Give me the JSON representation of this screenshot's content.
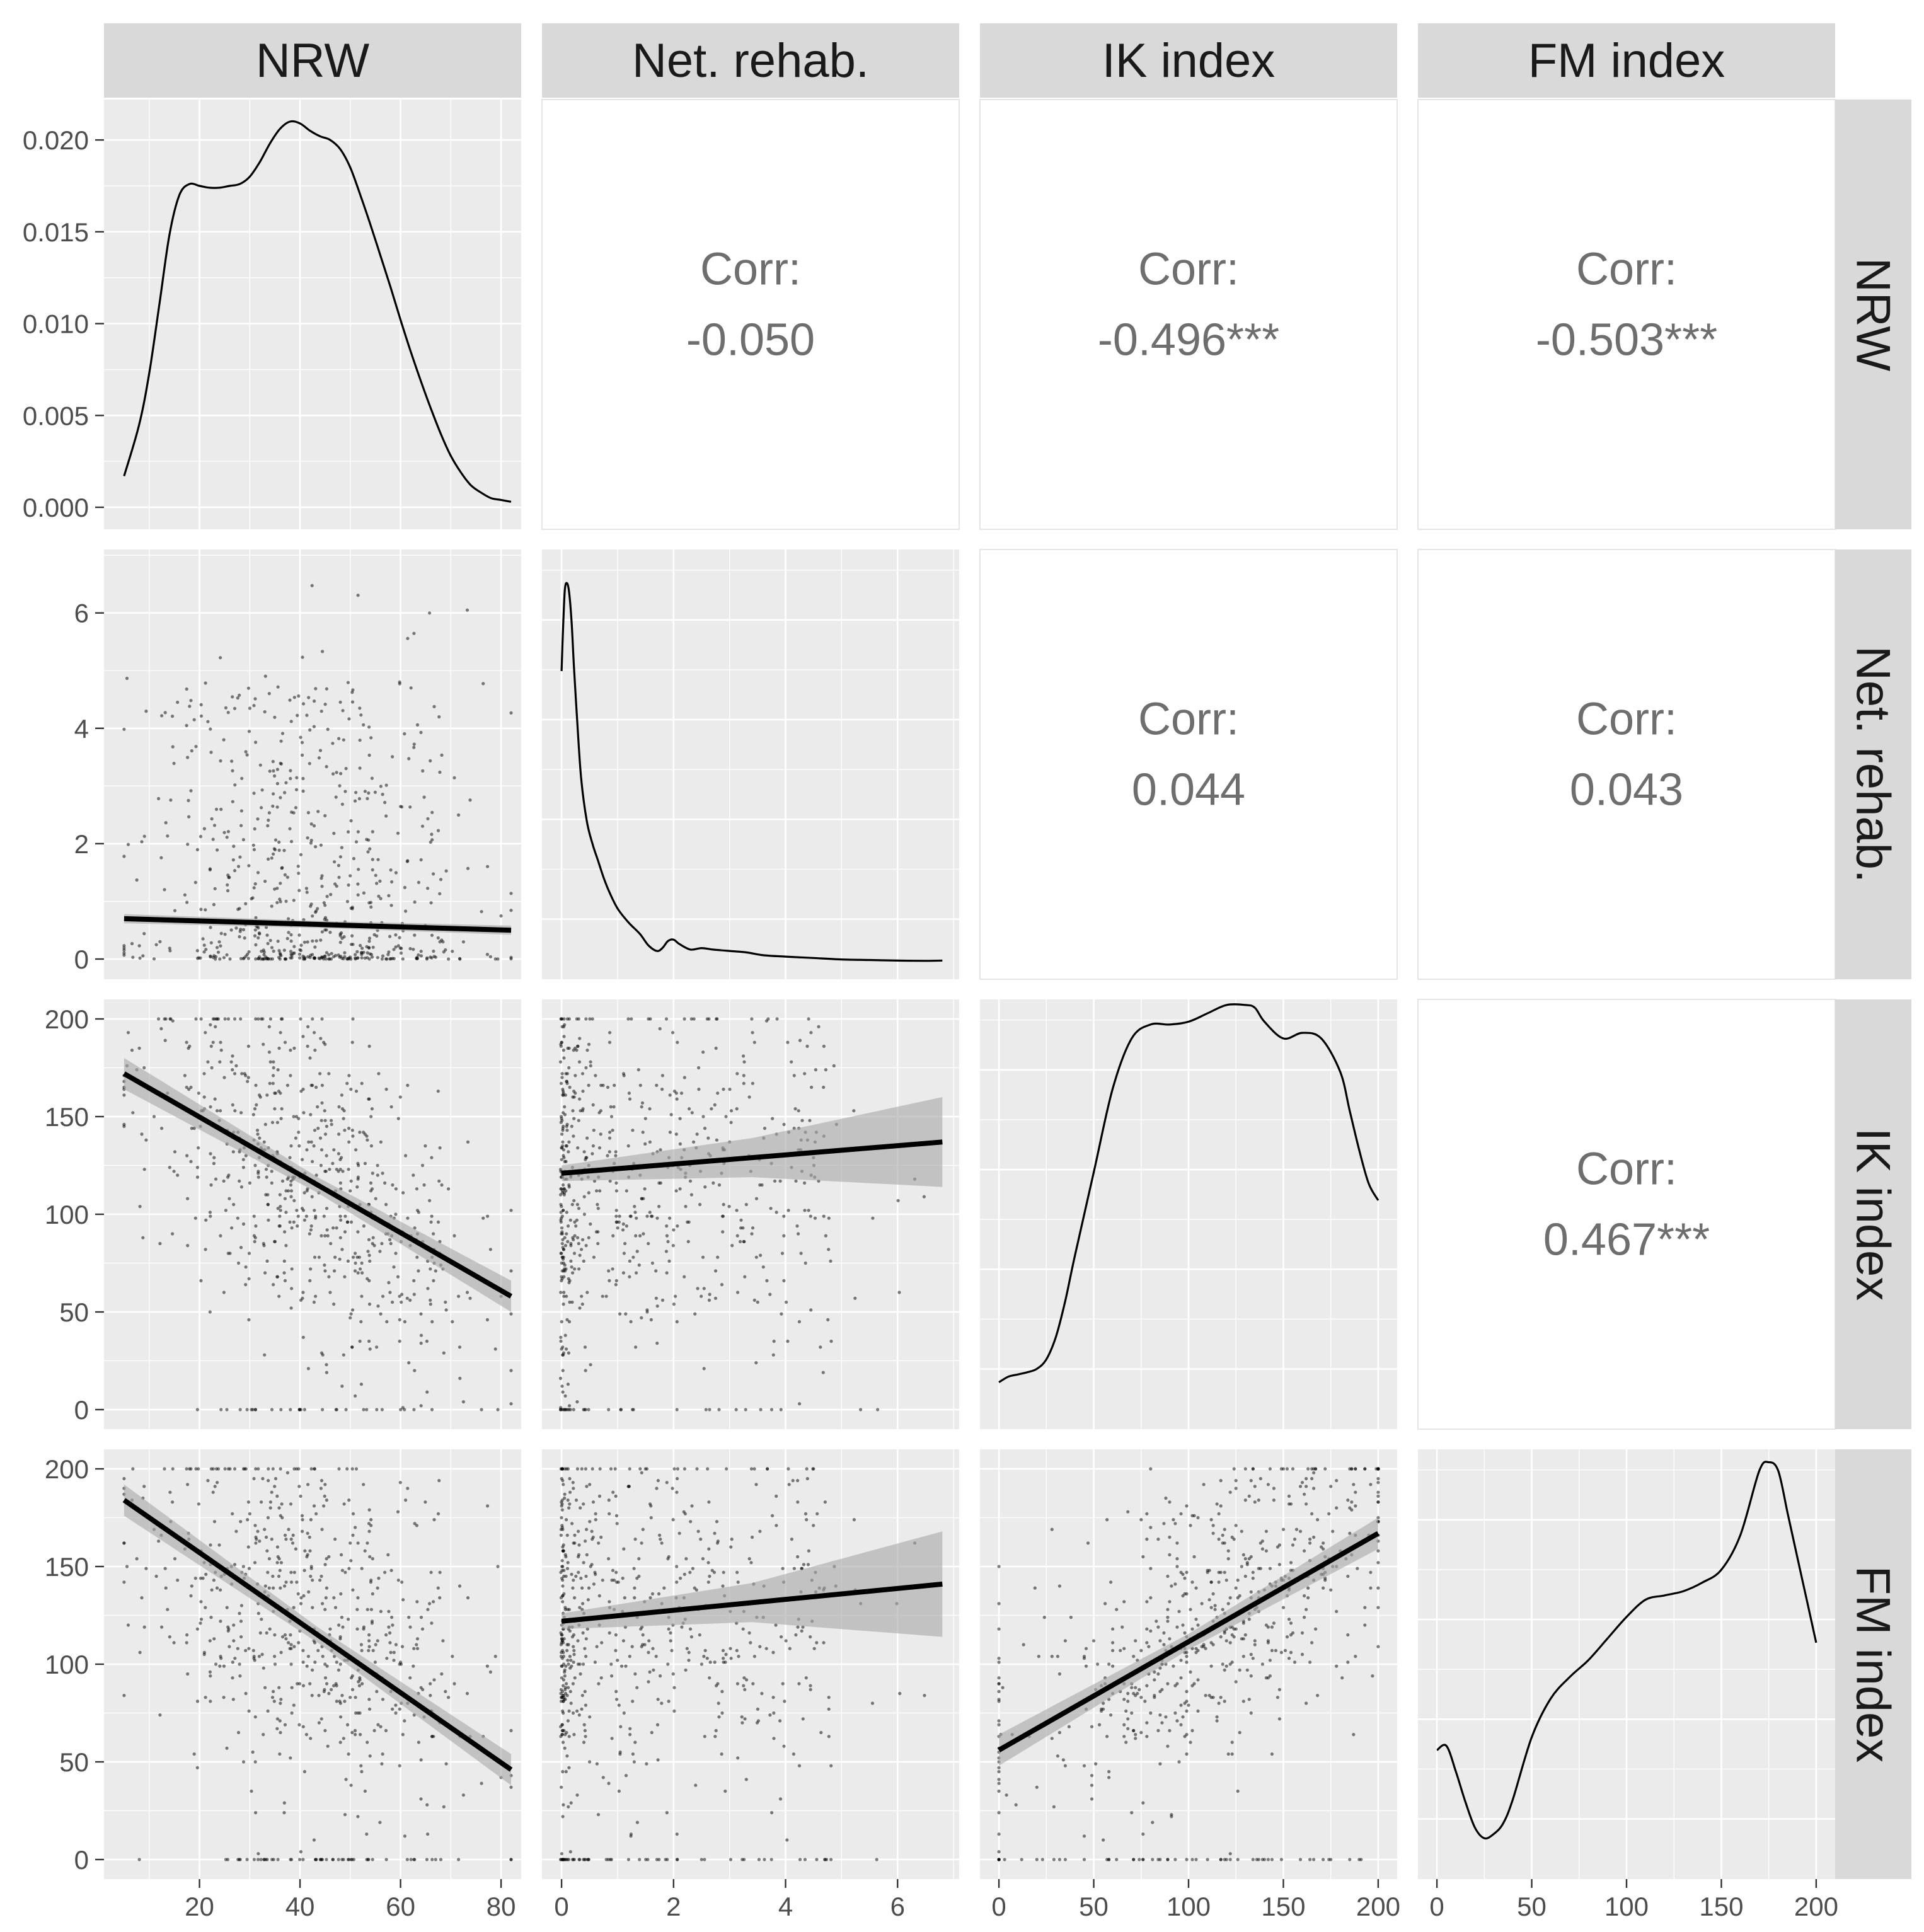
{
  "chart_data": {
    "type": "scatter",
    "title": "",
    "variables": [
      "NRW",
      "Net. rehab.",
      "IK index",
      "FM index"
    ],
    "diagonal": [
      {
        "variable": "NRW",
        "type": "density",
        "xlim": [
          1,
          84
        ],
        "ylim": [
          -0.0012,
          0.0222
        ],
        "y_ticks": [
          0.0,
          0.005,
          0.01,
          0.015,
          0.02
        ],
        "y_tick_labels": [
          "0.000",
          "0.005",
          "0.010",
          "0.015",
          "0.020"
        ],
        "x": [
          5,
          8,
          10,
          12,
          14,
          16,
          18,
          20,
          22,
          24,
          26,
          28,
          30,
          32,
          34,
          36,
          38,
          40,
          42,
          44,
          46,
          48,
          50,
          52,
          54,
          56,
          58,
          60,
          62,
          64,
          66,
          68,
          70,
          72,
          74,
          76,
          78,
          80,
          82
        ],
        "y": [
          0.0017,
          0.0045,
          0.0073,
          0.011,
          0.0148,
          0.017,
          0.0176,
          0.0175,
          0.0174,
          0.0174,
          0.0175,
          0.0176,
          0.018,
          0.0188,
          0.0198,
          0.0206,
          0.021,
          0.0209,
          0.0205,
          0.0202,
          0.02,
          0.0195,
          0.0185,
          0.017,
          0.0154,
          0.0137,
          0.012,
          0.0102,
          0.0085,
          0.0069,
          0.0054,
          0.004,
          0.0028,
          0.0019,
          0.0012,
          0.0008,
          0.0005,
          0.0004,
          0.0003
        ]
      },
      {
        "variable": "Net. rehab.",
        "type": "density",
        "xlim": [
          -0.35,
          7.1
        ],
        "ylim": [
          -0.06,
          1.46
        ],
        "x": [
          0,
          0.03,
          0.06,
          0.1,
          0.14,
          0.18,
          0.22,
          0.28,
          0.35,
          0.45,
          0.55,
          0.65,
          0.75,
          0.85,
          1.0,
          1.2,
          1.4,
          1.55,
          1.7,
          1.8,
          1.9,
          2.0,
          2.1,
          2.3,
          2.5,
          2.7,
          3.0,
          3.3,
          3.6,
          4.0,
          4.5,
          5.0,
          5.5,
          6.0,
          6.5,
          6.8
        ],
        "y": [
          1.03,
          1.2,
          1.32,
          1.34,
          1.3,
          1.2,
          1.05,
          0.85,
          0.65,
          0.5,
          0.42,
          0.36,
          0.3,
          0.25,
          0.19,
          0.14,
          0.1,
          0.06,
          0.04,
          0.05,
          0.075,
          0.08,
          0.065,
          0.045,
          0.05,
          0.045,
          0.04,
          0.035,
          0.025,
          0.02,
          0.015,
          0.01,
          0.008,
          0.006,
          0.005,
          0.006
        ]
      },
      {
        "variable": "IK index",
        "type": "density",
        "xlim": [
          -10,
          210
        ],
        "ylim": [
          -0.0002,
          0.0075
        ],
        "x": [
          0,
          5,
          10,
          15,
          20,
          25,
          30,
          35,
          40,
          50,
          60,
          70,
          80,
          90,
          100,
          110,
          120,
          130,
          135,
          140,
          150,
          160,
          170,
          180,
          185,
          190,
          195,
          200
        ],
        "y": [
          0.00064,
          0.00074,
          0.00078,
          0.00082,
          0.00088,
          0.00105,
          0.00145,
          0.0021,
          0.0029,
          0.0044,
          0.0059,
          0.0068,
          0.00705,
          0.00705,
          0.0071,
          0.00725,
          0.0074,
          0.0074,
          0.00735,
          0.0071,
          0.0068,
          0.0069,
          0.0068,
          0.0062,
          0.0055,
          0.0048,
          0.0042,
          0.0039
        ]
      },
      {
        "variable": "FM index",
        "type": "density",
        "xlim": [
          -10,
          210
        ],
        "ylim": [
          0,
          0.01
        ],
        "x": [
          0,
          5,
          10,
          15,
          20,
          25,
          30,
          35,
          40,
          50,
          60,
          70,
          80,
          90,
          100,
          110,
          120,
          130,
          140,
          150,
          160,
          170,
          175,
          180,
          185,
          190,
          195,
          200
        ],
        "y": [
          0.003,
          0.0031,
          0.0025,
          0.0018,
          0.0012,
          0.00095,
          0.00105,
          0.0013,
          0.00185,
          0.0033,
          0.0042,
          0.0047,
          0.0051,
          0.0056,
          0.0061,
          0.0065,
          0.0066,
          0.0067,
          0.0069,
          0.0072,
          0.008,
          0.0095,
          0.0097,
          0.0095,
          0.0085,
          0.0075,
          0.0065,
          0.0055
        ]
      }
    ],
    "correlations": [
      {
        "row": 0,
        "col": 1,
        "label": "Corr:",
        "value": "-0.050"
      },
      {
        "row": 0,
        "col": 2,
        "label": "Corr:",
        "value": "-0.496***"
      },
      {
        "row": 0,
        "col": 3,
        "label": "Corr:",
        "value": "-0.503***"
      },
      {
        "row": 1,
        "col": 2,
        "label": "Corr:",
        "value": "0.044"
      },
      {
        "row": 1,
        "col": 3,
        "label": "Corr:",
        "value": "0.043"
      },
      {
        "row": 2,
        "col": 3,
        "label": "Corr:",
        "value": "0.467***"
      }
    ],
    "scatter_panels": [
      {
        "row": 1,
        "col": 0,
        "x_var": "NRW",
        "y_var": "Net. rehab.",
        "fit": {
          "x0": 5,
          "y0": 0.7,
          "x1": 82,
          "y1": 0.5
        },
        "ci_half_width": [
          0.08,
          0.06,
          0.08
        ]
      },
      {
        "row": 2,
        "col": 0,
        "x_var": "NRW",
        "y_var": "IK index",
        "fit": {
          "x0": 5,
          "y0": 172,
          "x1": 82,
          "y1": 58
        },
        "ci_half_width": [
          8,
          4,
          8
        ]
      },
      {
        "row": 2,
        "col": 1,
        "x_var": "Net. rehab.",
        "y_var": "IK index",
        "fit": {
          "x0": 0,
          "y0": 121,
          "x1": 6.8,
          "y1": 137
        },
        "ci_half_width": [
          4,
          10,
          23
        ]
      },
      {
        "row": 3,
        "col": 0,
        "x_var": "NRW",
        "y_var": "FM index",
        "fit": {
          "x0": 5,
          "y0": 184,
          "x1": 82,
          "y1": 46
        },
        "ci_half_width": [
          8,
          4,
          8
        ]
      },
      {
        "row": 3,
        "col": 1,
        "x_var": "Net. rehab.",
        "y_var": "FM index",
        "fit": {
          "x0": 0,
          "y0": 122,
          "x1": 6.8,
          "y1": 141
        },
        "ci_half_width": [
          4,
          10,
          27
        ]
      },
      {
        "row": 3,
        "col": 2,
        "x_var": "IK index",
        "y_var": "FM index",
        "fit": {
          "x0": 0,
          "y0": 56,
          "x1": 200,
          "y1": 167
        },
        "ci_half_width": [
          8,
          4,
          8
        ]
      }
    ],
    "axes": {
      "rows": [
        {
          "variable": "NRW",
          "ylim": [
            -0.0012,
            0.0222
          ],
          "ticks": [
            0,
            0.005,
            0.01,
            0.015,
            0.02
          ],
          "tick_labels": [
            "0.000",
            "0.005",
            "0.010",
            "0.015",
            "0.020"
          ]
        },
        {
          "variable": "Net. rehab.",
          "ylim": [
            -0.35,
            7.1
          ],
          "ticks": [
            0,
            2,
            4,
            6
          ],
          "tick_labels": [
            "0",
            "2",
            "4",
            "6"
          ]
        },
        {
          "variable": "IK index",
          "ylim": [
            -10,
            210
          ],
          "ticks": [
            0,
            50,
            100,
            150,
            200
          ],
          "tick_labels": [
            "0",
            "50",
            "100",
            "150",
            "200"
          ]
        },
        {
          "variable": "FM index",
          "ylim": [
            -10,
            210
          ],
          "ticks": [
            0,
            50,
            100,
            150,
            200
          ],
          "tick_labels": [
            "0",
            "50",
            "100",
            "150",
            "200"
          ]
        }
      ],
      "cols": [
        {
          "variable": "NRW",
          "xlim": [
            1,
            84
          ],
          "ticks": [
            20,
            40,
            60,
            80
          ],
          "tick_labels": [
            "20",
            "40",
            "60",
            "80"
          ]
        },
        {
          "variable": "Net. rehab.",
          "xlim": [
            -0.35,
            7.1
          ],
          "ticks": [
            0,
            2,
            4,
            6
          ],
          "tick_labels": [
            "0",
            "2",
            "4",
            "6"
          ]
        },
        {
          "variable": "IK index",
          "xlim": [
            -10,
            210
          ],
          "ticks": [
            0,
            50,
            100,
            150,
            200
          ],
          "tick_labels": [
            "0",
            "50",
            "100",
            "150",
            "200"
          ]
        },
        {
          "variable": "FM index",
          "xlim": [
            -10,
            210
          ],
          "ticks": [
            0,
            50,
            100,
            150,
            200
          ],
          "tick_labels": [
            "0",
            "50",
            "100",
            "150",
            "200"
          ]
        }
      ]
    }
  },
  "strips": {
    "top": [
      "NRW",
      "Net. rehab.",
      "IK index",
      "FM index"
    ],
    "right": [
      "NRW",
      "Net. rehab.",
      "IK index",
      "FM index"
    ]
  },
  "colors": {
    "panel_bg": "#ebebeb",
    "strip_bg": "#d9d9d9",
    "grid_major": "#ffffff",
    "corr_text": "#6e6e6e",
    "line": "#000000",
    "ci_band": "#a6a6a6"
  }
}
